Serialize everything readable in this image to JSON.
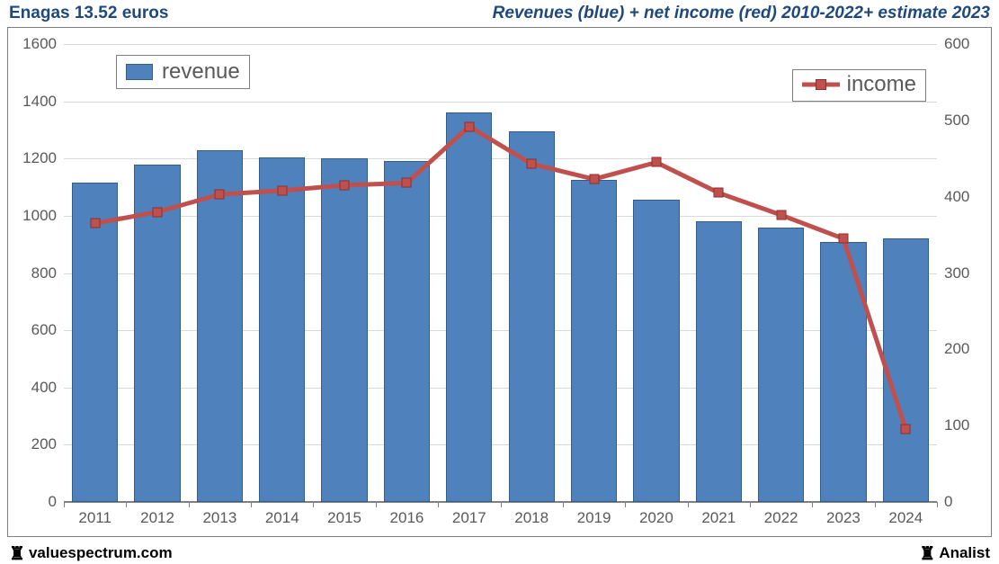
{
  "header": {
    "title_left": "Enagas 13.52 euros",
    "title_right": "Revenues (blue) + net income (red) 2010-2022+ estimate 2023",
    "title_color": "#1f497d",
    "title_fontsize": 19
  },
  "footer": {
    "left_text": "valuespectrum.com",
    "right_text": "Analist",
    "icon": "♜"
  },
  "chart": {
    "type": "bar+line",
    "background_color": "#ffffff",
    "border_color": "#808080",
    "grid_color": "#d9d9d9",
    "axis_label_color": "#595959",
    "axis_fontsize": 17,
    "categories": [
      "2011",
      "2012",
      "2013",
      "2014",
      "2015",
      "2016",
      "2017",
      "2018",
      "2019",
      "2020",
      "2021",
      "2022",
      "2023",
      "2024"
    ],
    "left_axis": {
      "min": 0,
      "max": 1600,
      "step": 200,
      "ticks": [
        0,
        200,
        400,
        600,
        800,
        1000,
        1200,
        1400,
        1600
      ]
    },
    "right_axis": {
      "min": 0,
      "max": 600,
      "step": 100,
      "ticks": [
        0,
        100,
        200,
        300,
        400,
        500,
        600
      ]
    },
    "bars": {
      "label": "revenue",
      "axis": "left",
      "color": "#4f81bd",
      "border_color": "#305d8a",
      "bar_width_frac": 0.74,
      "values": [
        1115,
        1180,
        1230,
        1205,
        1200,
        1190,
        1360,
        1295,
        1125,
        1055,
        980,
        960,
        910,
        920
      ]
    },
    "line": {
      "label": "income",
      "axis": "right",
      "color": "#c0504d",
      "border_color": "#8a2f2c",
      "line_width": 5,
      "marker_size": 11,
      "values": [
        365,
        380,
        403,
        408,
        415,
        418,
        492,
        443,
        423,
        445,
        405,
        376,
        345,
        95
      ]
    },
    "legend": {
      "revenue_pos": "top-left",
      "income_pos": "top-right",
      "fontsize": 24
    }
  }
}
